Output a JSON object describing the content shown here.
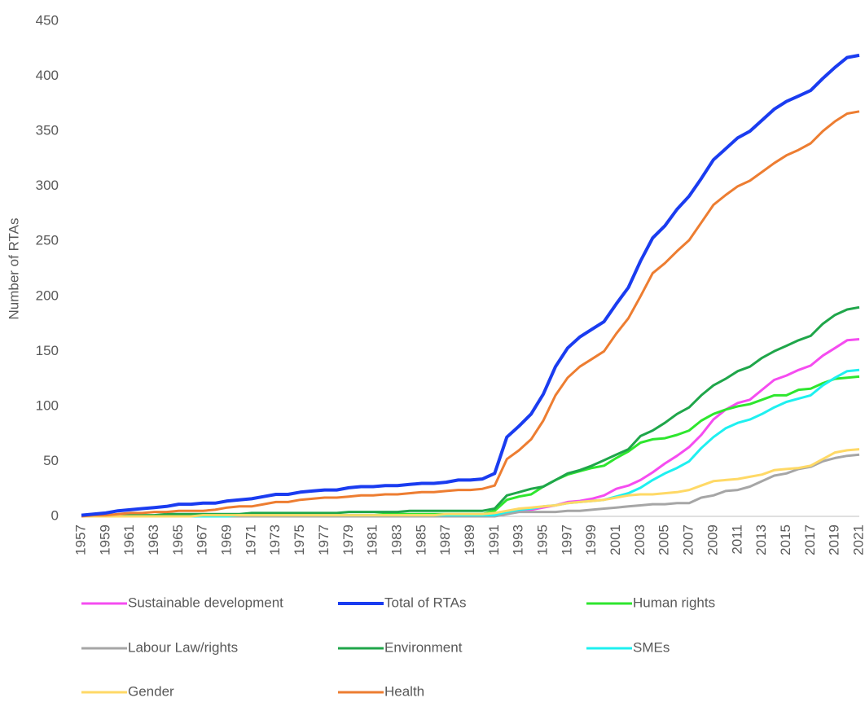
{
  "chart_data": {
    "type": "line",
    "y_label": "Number of RTAs",
    "categories": [
      "1957",
      null,
      "1959",
      null,
      "1961",
      null,
      "1963",
      null,
      "1965",
      null,
      "1967",
      null,
      "1969",
      null,
      "1971",
      null,
      "1973",
      null,
      "1975",
      null,
      "1977",
      null,
      "1979",
      null,
      "1981",
      null,
      "1983",
      null,
      "1985",
      null,
      "1987",
      null,
      "1989",
      null,
      "1991",
      null,
      "1993",
      null,
      "1995",
      null,
      "1997",
      null,
      "1999",
      null,
      "2001",
      null,
      "2003",
      null,
      "2005",
      null,
      "2007",
      null,
      "2009",
      null,
      "2011",
      null,
      "2013",
      null,
      "2015",
      null,
      "2017",
      null,
      "2019",
      null,
      "2021"
    ],
    "ylim": [
      0,
      450
    ],
    "yticks": [
      0,
      50,
      100,
      150,
      200,
      250,
      300,
      350,
      400,
      450
    ],
    "legend": "bottom",
    "series": [
      {
        "name": "Sustainable development",
        "color": "#f54cf0",
        "values": [
          0,
          0,
          0,
          0,
          0,
          0,
          0,
          0,
          0,
          0,
          1,
          1,
          1,
          1,
          1,
          1,
          1,
          1,
          1,
          1,
          1,
          1,
          1,
          1,
          1,
          1,
          1,
          1,
          1,
          1,
          1,
          1,
          1,
          1,
          1,
          3,
          5,
          6,
          8,
          10,
          13,
          14,
          16,
          19,
          25,
          28,
          33,
          40,
          48,
          55,
          63,
          74,
          88,
          97,
          103,
          106,
          115,
          124,
          128,
          133,
          137,
          146,
          153,
          160,
          161
        ]
      },
      {
        "name": "Total of RTAs",
        "color": "#1a3cf0",
        "values": [
          1,
          2,
          3,
          5,
          6,
          7,
          8,
          9,
          11,
          11,
          12,
          12,
          14,
          15,
          16,
          18,
          20,
          20,
          22,
          23,
          24,
          24,
          26,
          27,
          27,
          28,
          28,
          29,
          30,
          30,
          31,
          33,
          33,
          34,
          39,
          72,
          82,
          93,
          111,
          136,
          153,
          163,
          170,
          177,
          193,
          208,
          232,
          253,
          264,
          279,
          291,
          307,
          324,
          334,
          344,
          350,
          360,
          370,
          377,
          382,
          387,
          398,
          408,
          417,
          419
        ]
      },
      {
        "name": "Human rights",
        "color": "#2ee62e",
        "values": [
          0,
          0,
          0,
          0,
          0,
          0,
          0,
          0,
          0,
          0,
          1,
          1,
          1,
          1,
          1,
          1,
          1,
          1,
          1,
          1,
          1,
          1,
          1,
          1,
          1,
          2,
          2,
          2,
          2,
          2,
          2,
          2,
          2,
          2,
          5,
          15,
          18,
          20,
          27,
          33,
          38,
          41,
          44,
          46,
          53,
          59,
          67,
          70,
          71,
          74,
          78,
          87,
          93,
          97,
          100,
          102,
          106,
          110,
          110,
          115,
          116,
          121,
          125,
          126,
          127
        ]
      },
      {
        "name": "Labour Law/rights",
        "color": "#a6a6a6",
        "values": [
          0,
          0,
          0,
          0,
          0,
          0,
          0,
          0,
          0,
          0,
          0,
          0,
          0,
          0,
          0,
          0,
          0,
          0,
          0,
          0,
          0,
          0,
          0,
          0,
          0,
          0,
          0,
          0,
          0,
          0,
          0,
          0,
          0,
          0,
          0,
          2,
          4,
          4,
          4,
          4,
          5,
          5,
          6,
          7,
          8,
          9,
          10,
          11,
          11,
          12,
          12,
          17,
          19,
          23,
          24,
          27,
          32,
          37,
          39,
          43,
          45,
          50,
          53,
          55,
          56
        ]
      },
      {
        "name": "Environment",
        "color": "#1fa64a",
        "values": [
          1,
          1,
          1,
          1,
          1,
          1,
          1,
          2,
          2,
          2,
          2,
          2,
          2,
          2,
          3,
          3,
          3,
          3,
          3,
          3,
          3,
          3,
          4,
          4,
          4,
          4,
          4,
          5,
          5,
          5,
          5,
          5,
          5,
          5,
          7,
          19,
          22,
          25,
          27,
          33,
          39,
          42,
          46,
          51,
          56,
          61,
          73,
          78,
          85,
          93,
          99,
          110,
          119,
          125,
          132,
          136,
          144,
          150,
          155,
          160,
          164,
          175,
          183,
          188,
          190
        ]
      },
      {
        "name": "SMEs",
        "color": "#1ef0f0",
        "values": [
          0,
          0,
          0,
          0,
          0,
          0,
          0,
          0,
          0,
          0,
          0,
          0,
          0,
          1,
          1,
          1,
          1,
          1,
          1,
          1,
          1,
          1,
          1,
          1,
          1,
          1,
          1,
          1,
          1,
          1,
          1,
          1,
          1,
          1,
          1,
          4,
          6,
          7,
          9,
          10,
          12,
          13,
          14,
          15,
          18,
          21,
          26,
          33,
          39,
          44,
          50,
          62,
          72,
          80,
          85,
          88,
          93,
          99,
          104,
          107,
          110,
          119,
          126,
          132,
          133
        ]
      },
      {
        "name": "Gender",
        "color": "#ffd966",
        "values": [
          0,
          0,
          0,
          0,
          0,
          0,
          0,
          0,
          0,
          0,
          1,
          1,
          1,
          1,
          1,
          1,
          1,
          1,
          1,
          1,
          1,
          1,
          1,
          1,
          1,
          1,
          1,
          1,
          1,
          1,
          2,
          2,
          2,
          2,
          3,
          5,
          7,
          8,
          9,
          10,
          12,
          13,
          14,
          15,
          17,
          19,
          20,
          20,
          21,
          22,
          24,
          28,
          32,
          33,
          34,
          36,
          38,
          42,
          43,
          44,
          46,
          52,
          58,
          60,
          61
        ]
      },
      {
        "name": "Health",
        "color": "#ed7d31",
        "values": [
          0,
          1,
          1,
          2,
          3,
          3,
          4,
          4,
          5,
          5,
          5,
          6,
          8,
          9,
          9,
          11,
          13,
          13,
          15,
          16,
          17,
          17,
          18,
          19,
          19,
          20,
          20,
          21,
          22,
          22,
          23,
          24,
          24,
          25,
          28,
          52,
          60,
          70,
          87,
          110,
          126,
          136,
          143,
          150,
          166,
          180,
          200,
          221,
          230,
          241,
          251,
          267,
          283,
          292,
          300,
          305,
          313,
          321,
          328,
          333,
          339,
          350,
          359,
          366,
          368
        ]
      }
    ]
  }
}
